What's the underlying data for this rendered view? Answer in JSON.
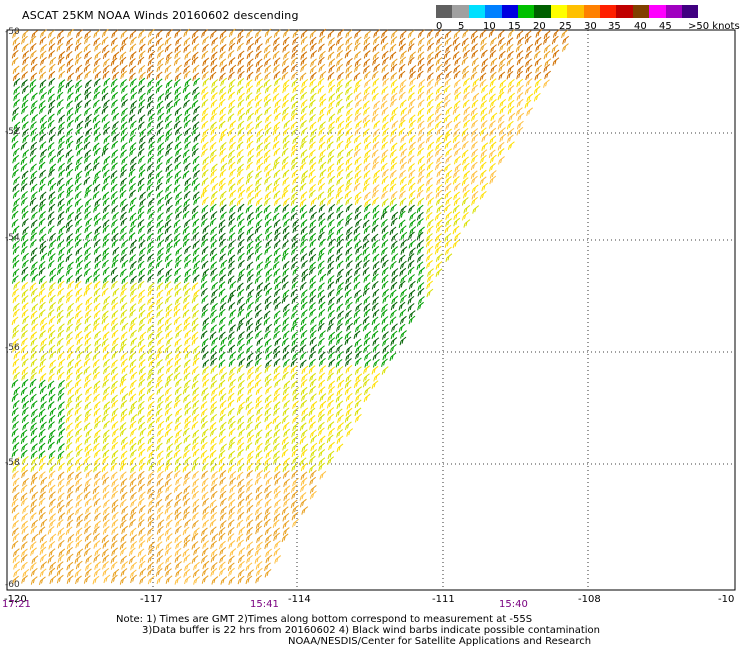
{
  "title": "ASCAT 25KM NOAA Winds 20160602 descending",
  "legend": {
    "labels": [
      "0",
      "5",
      "10",
      "15",
      "20",
      "25",
      "30",
      "35",
      "40",
      "45",
      ">50 knots"
    ],
    "colors": [
      "#606060",
      "#a0a0a0",
      "#00e0ff",
      "#0080ff",
      "#0000e0",
      "#00c000",
      "#006000",
      "#ffff00",
      "#ffc000",
      "#ff8000",
      "#ff2000",
      "#c00000",
      "#804000",
      "#ff00ff",
      "#a000c0",
      "#400080"
    ]
  },
  "lon_labels": [
    "-120",
    "-117",
    "-114",
    "-111",
    "-108",
    "-10"
  ],
  "lat_labels": [
    "-50",
    "-52",
    "-54",
    "-56",
    "-58",
    "-60"
  ],
  "times": [
    "17:21",
    "15:41",
    "15:40"
  ],
  "notes": [
    "Note: 1) Times are GMT 2)Times along bottom correspond to measurement at -55S",
    "3)Data buffer is 22 hrs from 20160602 4) Black wind barbs indicate possible contamination",
    "NOAA/NESDIS/Center for Satellite Applications and Research"
  ],
  "map": {
    "lon_range": [
      -120,
      -105
    ],
    "lat_range": [
      -60,
      -50
    ],
    "wind_color_scale": [
      "#00a000",
      "#006000",
      "#d8e000",
      "#ffe000",
      "#ffc040",
      "#e8a020",
      "#d07000"
    ]
  }
}
